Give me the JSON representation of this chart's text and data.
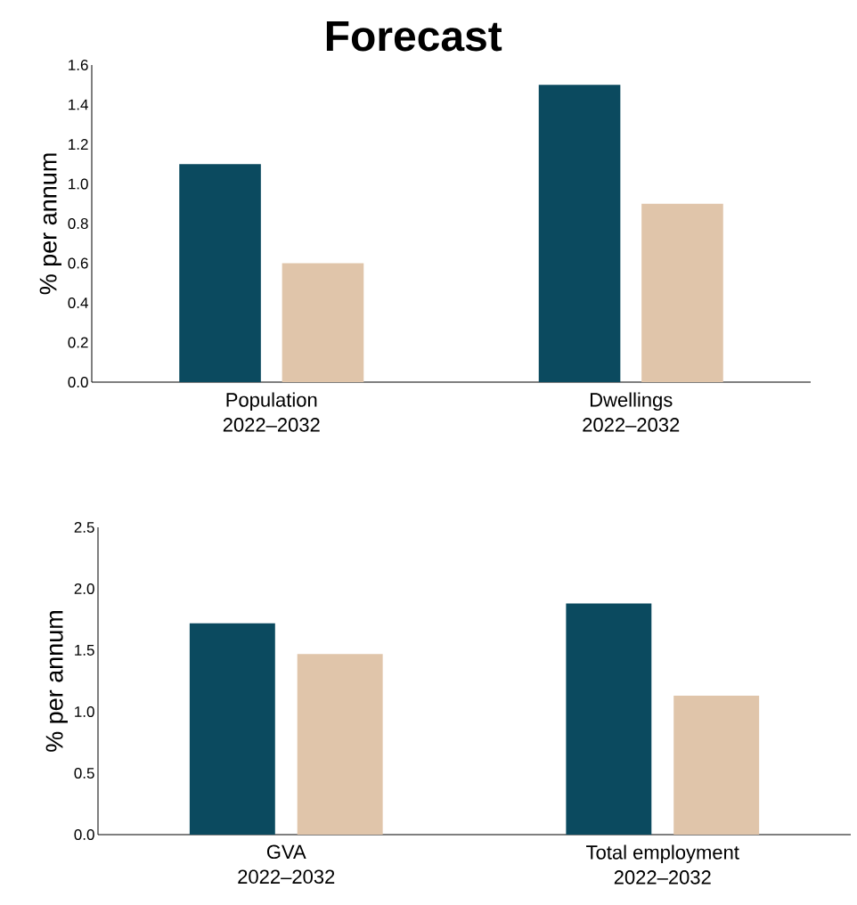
{
  "chart_data": [
    {
      "type": "bar",
      "title": "Forecast",
      "ylabel": "% per annum",
      "categories": [
        "Population 2022–2032",
        "Dwellings 2022–2032"
      ],
      "series": [
        {
          "color": "#0b4a5f",
          "values": [
            1.1,
            1.5
          ]
        },
        {
          "color": "#e0c5aa",
          "values": [
            0.6,
            0.9
          ]
        }
      ],
      "ylim": [
        0,
        1.6
      ],
      "yticks": [
        {
          "value": 0,
          "label": "0.0"
        },
        {
          "value": 0.2,
          "label": "0.2"
        },
        {
          "value": 0.4,
          "label": "0.4"
        },
        {
          "value": 0.6,
          "label": "0.6"
        },
        {
          "value": 0.8,
          "label": "0.8"
        },
        {
          "value": 1.0,
          "label": "1.0"
        },
        {
          "value": 1.2,
          "label": "1.2"
        },
        {
          "value": 1.4,
          "label": "1.4"
        },
        {
          "value": 1.6,
          "label": "1.6"
        }
      ]
    },
    {
      "type": "bar",
      "ylabel": "% per annum",
      "categories": [
        "GVA 2022–2032",
        "Total employment 2022–2032"
      ],
      "series": [
        {
          "color": "#0b4a5f",
          "values": [
            1.72,
            1.88
          ]
        },
        {
          "color": "#e0c5aa",
          "values": [
            1.47,
            1.13
          ]
        }
      ],
      "ylim": [
        0,
        2.5
      ],
      "yticks": [
        {
          "value": 0,
          "label": "0.0"
        },
        {
          "value": 0.5,
          "label": "0.5"
        },
        {
          "value": 1.0,
          "label": "1.0"
        },
        {
          "value": 1.5,
          "label": "1.5"
        },
        {
          "value": 2.0,
          "label": "2.0"
        },
        {
          "value": 2.5,
          "label": "2.5"
        }
      ]
    }
  ]
}
